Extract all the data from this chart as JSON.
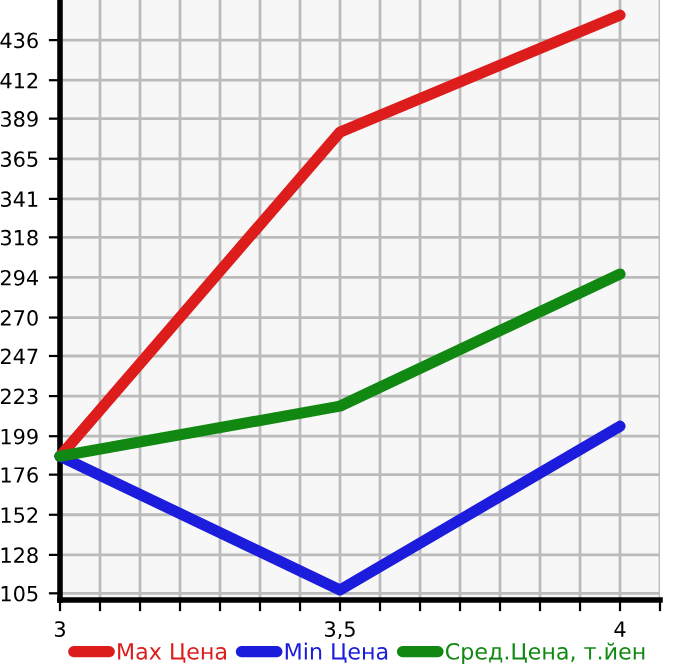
{
  "chart_data": {
    "type": "line",
    "x": [
      3,
      3.5,
      4
    ],
    "series": [
      {
        "name": "Max Цена",
        "color": "#dd1c1c",
        "values": [
          187,
          381,
          451
        ]
      },
      {
        "name": "Min Цена",
        "color": "#1c1cdd",
        "values": [
          187,
          107,
          205
        ]
      },
      {
        "name": "Сред.Цена, т.йен",
        "color": "#118811",
        "values": [
          187,
          217,
          296
        ]
      }
    ],
    "xlim": [
      3,
      4.0714
    ],
    "xticks": [
      {
        "value": 3,
        "label": "3"
      },
      {
        "value": 3.0714,
        "label": null
      },
      {
        "value": 3.1429,
        "label": null
      },
      {
        "value": 3.2143,
        "label": null
      },
      {
        "value": 3.2857,
        "label": null
      },
      {
        "value": 3.3571,
        "label": null
      },
      {
        "value": 3.4286,
        "label": null
      },
      {
        "value": 3.5,
        "label": "3,5"
      },
      {
        "value": 3.5714,
        "label": null
      },
      {
        "value": 3.6429,
        "label": null
      },
      {
        "value": 3.7143,
        "label": null
      },
      {
        "value": 3.7857,
        "label": null
      },
      {
        "value": 3.8571,
        "label": null
      },
      {
        "value": 3.9286,
        "label": null
      },
      {
        "value": 4,
        "label": "4"
      },
      {
        "value": 4.0714,
        "label": null
      }
    ],
    "ylim": [
      101,
      460
    ],
    "yticks": [
      105,
      128,
      152,
      176,
      199,
      223,
      247,
      270,
      294,
      318,
      341,
      365,
      389,
      412,
      436
    ],
    "grid": true,
    "legend": "bottom",
    "marker": "none",
    "line_style": "solid"
  }
}
